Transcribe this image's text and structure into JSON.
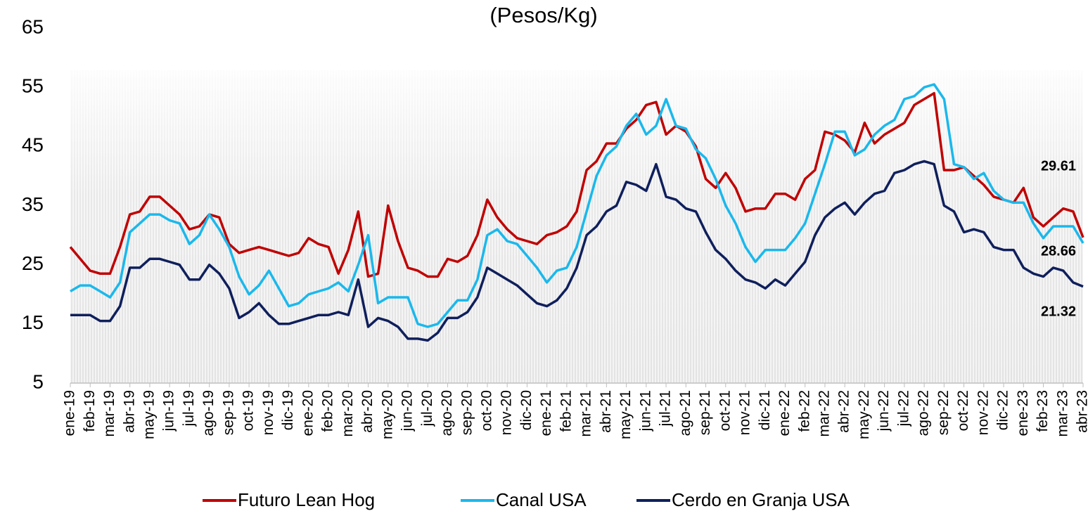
{
  "chart_data": {
    "type": "line",
    "subtitle": "(Pesos/Kg)",
    "categories": [
      "ene-19",
      null,
      "feb-19",
      null,
      "mar-19",
      null,
      "abr-19",
      null,
      "may-19",
      null,
      "jun-19",
      null,
      "jul-19",
      null,
      "ago-19",
      null,
      "sep-19",
      null,
      "oct-19",
      null,
      "nov-19",
      null,
      "dic-19",
      null,
      "ene-20",
      null,
      "feb-20",
      null,
      "mar-20",
      null,
      "abr-20",
      null,
      "may-20",
      null,
      "jun-20",
      null,
      "jul-20",
      null,
      "ago-20",
      null,
      "sep-20",
      null,
      "oct-20",
      null,
      "nov-20",
      null,
      "dic-20",
      null,
      "ene-21",
      null,
      "feb-21",
      null,
      "mar-21",
      null,
      "abr-21",
      null,
      "may-21",
      null,
      "jun-21",
      null,
      "jul-21",
      null,
      "ago-21",
      null,
      "sep-21",
      null,
      "oct-21",
      null,
      "nov-21",
      null,
      "dic-21",
      null,
      "ene-22",
      null,
      "feb-22",
      null,
      "mar-22",
      null,
      "abr-22",
      null,
      "may-22",
      null,
      "jun-22",
      null,
      "jul-22",
      null,
      "ago-22",
      null,
      "sep-22",
      null,
      "oct-22",
      null,
      "nov-22",
      null,
      "dic-22",
      null,
      "ene-23",
      null,
      "feb-23",
      null,
      "mar-23",
      null,
      "abr-23"
    ],
    "series": [
      {
        "name": "Futuro Lean Hog",
        "color": "#c00000",
        "values": [
          28,
          26,
          24,
          23.5,
          23.5,
          28,
          33.5,
          34,
          36.5,
          36.5,
          35,
          33.5,
          31,
          31.5,
          33.5,
          33,
          28.5,
          27,
          27.5,
          28,
          27.5,
          27,
          26.5,
          27,
          29.5,
          28.5,
          28,
          23.5,
          27.5,
          34,
          23,
          23.5,
          35,
          29,
          24.5,
          24,
          23,
          23,
          26,
          25.5,
          26.5,
          30,
          36,
          33,
          31,
          29.5,
          29,
          28.5,
          30,
          30.5,
          31.5,
          34,
          41,
          42.5,
          45.5,
          45.5,
          48,
          49.5,
          52,
          52.5,
          47,
          48.5,
          47.5,
          45,
          39.5,
          38,
          40.5,
          38,
          34,
          34.5,
          34.5,
          37,
          37,
          36,
          39.5,
          41,
          47.5,
          47,
          46,
          44,
          49,
          45.5,
          47,
          48,
          49,
          52,
          53,
          54,
          41,
          41,
          41.5,
          40,
          38.5,
          36.5,
          36,
          35.5,
          38,
          33,
          31.5,
          33,
          34.5,
          34,
          29.61
        ]
      },
      {
        "name": "Canal USA",
        "color": "#1ab8ec",
        "values": [
          20.5,
          21.5,
          21.5,
          20.5,
          19.5,
          22,
          30.5,
          32,
          33.5,
          33.5,
          32.5,
          32,
          28.5,
          30,
          33.5,
          31,
          28,
          23,
          20,
          21.5,
          24,
          21,
          18,
          18.5,
          20,
          20.5,
          21,
          22,
          20.5,
          25,
          30,
          18.5,
          19.5,
          19.5,
          19.5,
          15,
          14.5,
          15,
          17,
          19,
          19,
          22.5,
          30,
          31,
          29,
          28.5,
          26.5,
          24.5,
          22,
          24,
          24.5,
          28,
          34,
          40,
          43.5,
          45,
          48.5,
          50.5,
          47,
          48.5,
          53,
          48.5,
          48,
          44.5,
          43,
          39.5,
          35,
          32,
          28,
          25.5,
          27.5,
          27.5,
          27.5,
          29.5,
          32,
          37,
          42,
          47.5,
          47.5,
          43.5,
          44.5,
          47,
          48.5,
          49.5,
          53,
          53.5,
          55,
          55.5,
          53,
          42,
          41.5,
          39.5,
          40.5,
          37.5,
          36,
          35.5,
          35.5,
          32,
          29.5,
          31.5,
          31.5,
          31.5,
          28.66
        ]
      },
      {
        "name": "Cerdo en Granja USA",
        "color": "#0f1f5c",
        "values": [
          16.5,
          16.5,
          16.5,
          15.5,
          15.5,
          18,
          24.5,
          24.5,
          26,
          26,
          25.5,
          25,
          22.5,
          22.5,
          25,
          23.5,
          21,
          16,
          17,
          18.5,
          16.5,
          15,
          15,
          15.5,
          16,
          16.5,
          16.5,
          17,
          16.5,
          22.5,
          14.5,
          16,
          15.5,
          14.5,
          12.5,
          12.5,
          12.2,
          13.5,
          16,
          16,
          17,
          19.5,
          24.5,
          23.5,
          22.5,
          21.5,
          20,
          18.5,
          18,
          19,
          21,
          24.5,
          30,
          31.5,
          34,
          35,
          39,
          38.5,
          37.5,
          42,
          36.5,
          36,
          34.5,
          34,
          30.5,
          27.5,
          26,
          24,
          22.5,
          22,
          21,
          22.5,
          21.5,
          23.5,
          25.5,
          30,
          33,
          34.5,
          35.5,
          33.5,
          35.5,
          37,
          37.5,
          40.5,
          41,
          42,
          42.5,
          42,
          35,
          34,
          30.5,
          31,
          30.5,
          28,
          27.5,
          27.5,
          24.5,
          23.5,
          23,
          24.5,
          24,
          22,
          21.32
        ]
      }
    ],
    "ylim": [
      5,
      65
    ],
    "yticks": [
      5,
      15,
      25,
      35,
      45,
      55,
      65
    ],
    "grid": false
  }
}
